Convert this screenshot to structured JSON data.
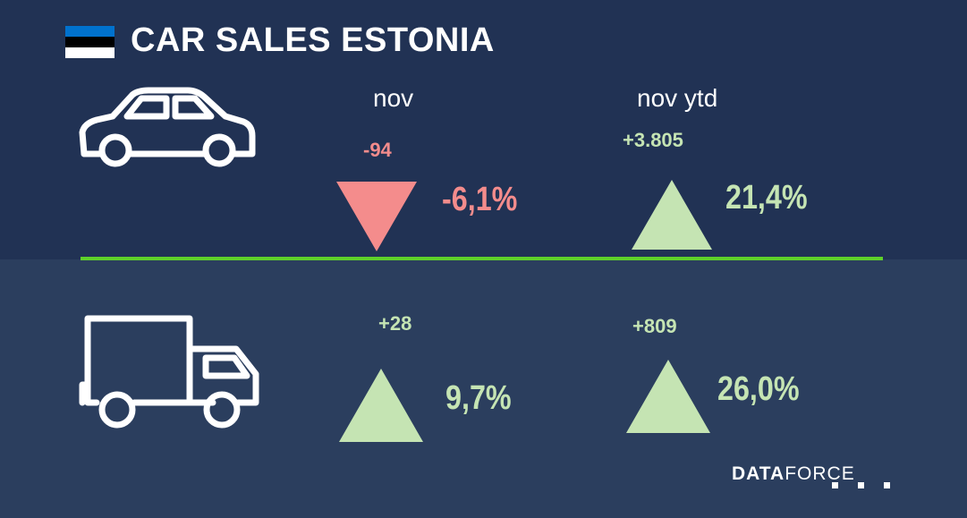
{
  "header": {
    "title": "CAR SALES ESTONIA",
    "flag_colors": [
      "#0072ce",
      "#000000",
      "#ffffff"
    ]
  },
  "columns": {
    "month_label": "nov",
    "ytd_label": "nov ytd"
  },
  "brand": {
    "bold": "DATA",
    "light": "FORCE"
  },
  "colors": {
    "negative": "#f48c8c",
    "positive": "#c5e4b3",
    "divider": "#5fd12a",
    "top_background": "#213254",
    "bottom_background": "#2b3e5e"
  },
  "rows": [
    {
      "category_icon": "car-icon",
      "month": {
        "abs_change": "-94",
        "pct_change": "-6,1%",
        "direction": "down"
      },
      "ytd": {
        "abs_change": "+3.805",
        "pct_change": "21,4%",
        "direction": "up"
      }
    },
    {
      "category_icon": "truck-icon",
      "month": {
        "abs_change": "+28",
        "pct_change": "9,7%",
        "direction": "up"
      },
      "ytd": {
        "abs_change": "+809",
        "pct_change": "26,0%",
        "direction": "up"
      }
    }
  ]
}
